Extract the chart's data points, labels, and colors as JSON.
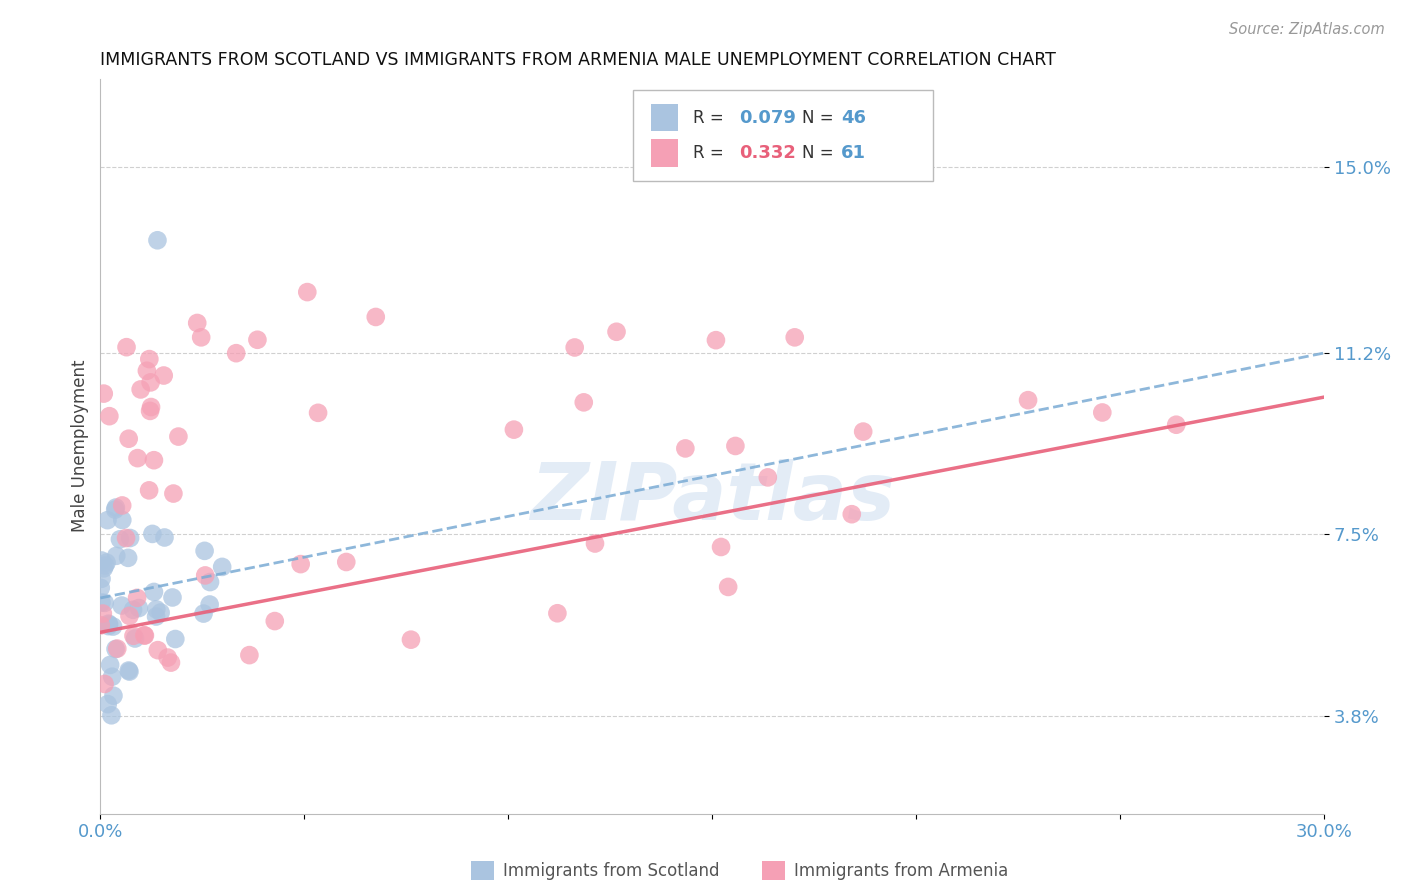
{
  "title": "IMMIGRANTS FROM SCOTLAND VS IMMIGRANTS FROM ARMENIA MALE UNEMPLOYMENT CORRELATION CHART",
  "source": "Source: ZipAtlas.com",
  "ylabel": "Male Unemployment",
  "ytick_labels": [
    "3.8%",
    "7.5%",
    "11.2%",
    "15.0%"
  ],
  "ytick_values": [
    0.038,
    0.075,
    0.112,
    0.15
  ],
  "xlim": [
    0.0,
    0.3
  ],
  "ylim": [
    0.018,
    0.168
  ],
  "scotland_color": "#aac4e0",
  "armenia_color": "#f5a0b5",
  "scotland_line_color": "#7aabd4",
  "armenia_line_color": "#e8607a",
  "watermark": "ZIPatlas",
  "legend_R_scotland": "0.079",
  "legend_N_scotland": "46",
  "legend_R_armenia": "0.332",
  "legend_N_armenia": "61"
}
